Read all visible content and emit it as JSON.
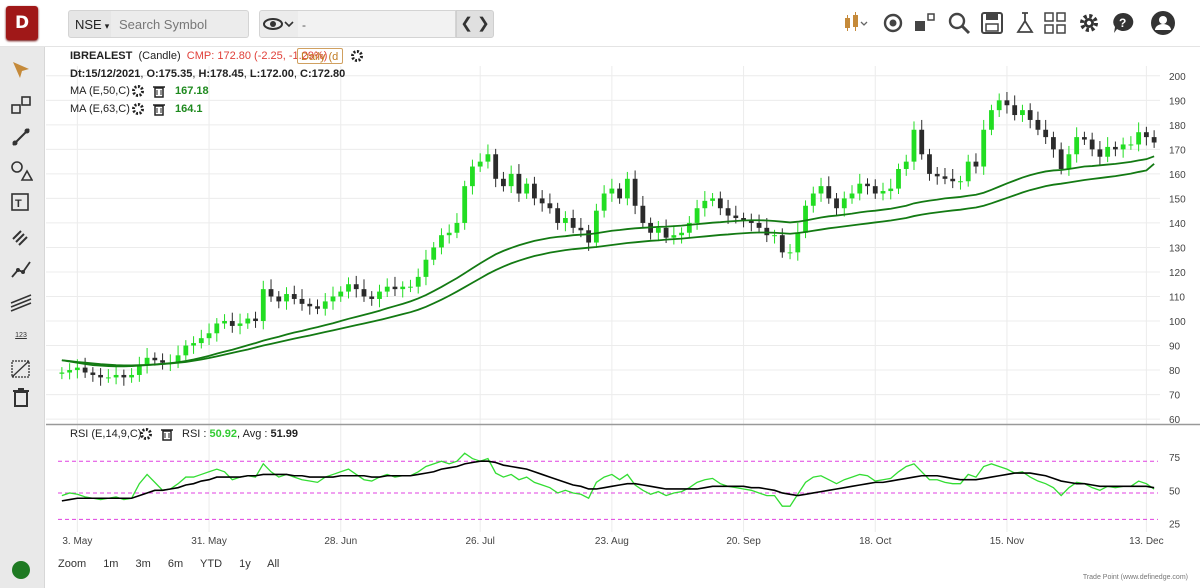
{
  "app": {
    "logo": "D",
    "footer": "Trade Point (www.definedge.com)"
  },
  "toolbar": {
    "exchange": "NSE",
    "search_placeholder": "Search Symbol",
    "nav_value": "-"
  },
  "toolbar_icons": [
    "candlestick-type-icon",
    "snapshot-icon",
    "layout-icon",
    "scanner-icon",
    "save-icon",
    "lab-icon",
    "grid-icon",
    "settings-icon",
    "help-icon",
    "user-icon"
  ],
  "sidebar_icons": [
    "cursor-icon",
    "rectangle-icon",
    "trendline-icon",
    "shapes-icon",
    "text-tool-icon",
    "fib-icon",
    "path-icon",
    "channel-icon",
    "number-icon",
    "measure-icon",
    "delete-icon"
  ],
  "sidebar": {
    "number_label": "123"
  },
  "legend": {
    "symbol": "IBREALEST",
    "chart_type": "(Candle)",
    "cmp": "CMP: 172.80 (-2.25, -1.29%)",
    "timeframe": "Daily (d",
    "ohlc_date": "Dt:15/12/2021",
    "open": "O:175.35",
    "high": "H:178.45",
    "low": "L:172.00",
    "close": "C:172.80",
    "ma1_label": "MA (E,50,C)",
    "ma1_value": "167.18",
    "ma2_label": "MA (E,63,C)",
    "ma2_value": "164.1",
    "rsi_label": "RSI (E,14,9,C)",
    "rsi_text": "RSI :",
    "rsi_value": "50.92",
    "avg_text": "Avg :",
    "avg_value": "51.99"
  },
  "zoom": {
    "label": "Zoom",
    "options": [
      "1m",
      "3m",
      "6m",
      "YTD",
      "1y",
      "All"
    ]
  },
  "colors": {
    "up": "#22dd22",
    "down": "#2b2b2b",
    "ma": "#137a13",
    "rsi": "#33dd33",
    "rsi_avg": "#000000",
    "rsi_band": "#e040e0"
  },
  "chart_data": {
    "type": "candlestick",
    "symbol": "IBREALEST",
    "price_axis": {
      "ticks": [
        60,
        70,
        80,
        90,
        100,
        110,
        120,
        130,
        140,
        150,
        160,
        170,
        180,
        190,
        200
      ],
      "range": [
        58,
        204
      ]
    },
    "rsi_axis": {
      "ticks": [
        25,
        50,
        75
      ],
      "range": [
        20,
        85
      ],
      "bands": [
        28,
        48,
        72
      ]
    },
    "x_ticks": [
      "3. May",
      "31. May",
      "28. Jun",
      "26. Jul",
      "23. Aug",
      "20. Sep",
      "18. Oct",
      "15. Nov",
      "13. Dec"
    ],
    "close": [
      79,
      80,
      81,
      79,
      78,
      77,
      77,
      78,
      77,
      78,
      82,
      85,
      84,
      83,
      83,
      86,
      90,
      91,
      93,
      95,
      99,
      100,
      98,
      99,
      101,
      100,
      113,
      110,
      108,
      111,
      109,
      107,
      106,
      105,
      108,
      110,
      112,
      115,
      113,
      110,
      109,
      112,
      114,
      113,
      114,
      114,
      118,
      125,
      130,
      135,
      136,
      140,
      155,
      163,
      165,
      168,
      158,
      155,
      160,
      152,
      156,
      150,
      148,
      146,
      140,
      142,
      138,
      137,
      132,
      145,
      152,
      154,
      150,
      158,
      147,
      140,
      136,
      138,
      134,
      135,
      136,
      140,
      146,
      149,
      150,
      146,
      143,
      142,
      141,
      140,
      138,
      135,
      135,
      128,
      128,
      136,
      147,
      152,
      155,
      150,
      146,
      150,
      152,
      156,
      155,
      152,
      153,
      154,
      162,
      165,
      178,
      168,
      160,
      159,
      158,
      157,
      157,
      165,
      163,
      178,
      186,
      190,
      188,
      184,
      186,
      182,
      178,
      175,
      170,
      162,
      168,
      175,
      174,
      170,
      167,
      171,
      170,
      172,
      172,
      177,
      175,
      172.8
    ],
    "ma50": [
      84,
      83.5,
      83,
      82.5,
      82,
      81.8,
      81.6,
      81.5,
      81.5,
      81.6,
      81.8,
      82,
      82.2,
      82.5,
      82.8,
      83.2,
      83.7,
      84.3,
      85,
      85.8,
      86.7,
      87.5,
      88.3,
      89.2,
      90.1,
      91,
      92,
      92.8,
      93.6,
      94.5,
      95.3,
      96,
      96.8,
      97.5,
      98.3,
      99.1,
      100,
      100.9,
      101.7,
      102.5,
      103.3,
      104.2,
      105.2,
      106.1,
      107,
      108,
      109.2,
      110.6,
      112.2,
      113.9,
      115.7,
      117.5,
      119.5,
      121.5,
      123.5,
      125.4,
      127.2,
      128.6,
      129.8,
      130.9,
      131.8,
      132.7,
      133.3,
      133.9,
      134.3,
      134.6,
      135,
      135.2,
      135.4,
      135.8,
      136.3,
      136.8,
      137.1,
      137.5,
      137.8,
      138,
      138.2,
      138.4,
      138.5,
      138.7,
      138.9,
      139.2,
      139.5,
      139.8,
      140.1,
      140.3,
      140.6,
      140.8,
      141,
      141.1,
      141.1,
      141,
      140.8,
      140.5,
      140.2,
      140.5,
      141,
      141.6,
      142.2,
      142.7,
      143,
      143.4,
      143.8,
      144.3,
      144.7,
      145,
      145.4,
      145.8,
      146.4,
      147,
      148,
      148.6,
      149.1,
      149.5,
      150,
      150.3,
      150.6,
      151.1,
      151.5,
      152.3,
      153.5,
      154.8,
      156.1,
      157.3,
      158.5,
      159.5,
      160.3,
      161,
      161.4,
      161.6,
      162,
      162.5,
      163,
      163.2,
      163.5,
      163.8,
      164.1,
      164.5,
      164.9,
      165.5,
      166,
      167.18
    ],
    "ma63": [
      84,
      83.7,
      83.3,
      83,
      82.7,
      82.4,
      82.2,
      82,
      81.9,
      81.9,
      82,
      82.1,
      82.3,
      82.5,
      82.7,
      83,
      83.3,
      83.8,
      84.3,
      84.9,
      85.6,
      86.3,
      87,
      87.7,
      88.4,
      89.2,
      90,
      90.7,
      91.4,
      92.1,
      92.8,
      93.5,
      94.1,
      94.8,
      95.5,
      96.2,
      96.9,
      97.6,
      98.3,
      99,
      99.7,
      100.4,
      101.2,
      102,
      102.8,
      103.6,
      104.6,
      105.8,
      107.2,
      108.7,
      110.3,
      112,
      113.8,
      115.6,
      117.4,
      119.2,
      120.8,
      122.2,
      123.5,
      124.6,
      125.6,
      126.5,
      127.2,
      127.9,
      128.4,
      128.9,
      129.3,
      129.6,
      129.9,
      130.2,
      130.6,
      131,
      131.4,
      131.8,
      132.1,
      132.4,
      132.7,
      132.9,
      133.2,
      133.4,
      133.6,
      133.9,
      134.2,
      134.5,
      134.8,
      135.1,
      135.3,
      135.6,
      135.8,
      136,
      136.1,
      136.1,
      136,
      135.8,
      135.6,
      135.9,
      136.3,
      136.8,
      137.3,
      137.8,
      138.2,
      138.6,
      139,
      139.4,
      139.8,
      140.2,
      140.6,
      141,
      141.5,
      142,
      142.8,
      143.4,
      143.9,
      144.3,
      144.7,
      145.1,
      145.4,
      145.9,
      146.3,
      147,
      148,
      149.1,
      150.2,
      151.3,
      152.4,
      153.4,
      154.2,
      155,
      155.6,
      156,
      156.5,
      157,
      157.5,
      157.9,
      158.3,
      158.7,
      159.1,
      159.6,
      160.1,
      160.8,
      161.4,
      164.1
    ],
    "rsi": [
      46,
      48,
      47,
      45,
      44,
      43,
      44,
      45,
      43,
      44,
      55,
      62,
      56,
      50,
      51,
      55,
      60,
      60,
      62,
      64,
      66,
      64,
      58,
      60,
      61,
      60,
      70,
      64,
      60,
      62,
      60,
      58,
      57,
      56,
      60,
      62,
      64,
      66,
      62,
      58,
      57,
      60,
      62,
      60,
      61,
      61,
      64,
      68,
      70,
      72,
      70,
      72,
      78,
      74,
      72,
      74,
      63,
      60,
      62,
      58,
      60,
      56,
      54,
      52,
      48,
      50,
      48,
      47,
      44,
      56,
      60,
      62,
      58,
      62,
      54,
      50,
      47,
      49,
      46,
      48,
      49,
      52,
      56,
      58,
      59,
      55,
      53,
      52,
      51,
      50,
      48,
      46,
      46,
      38,
      38,
      47,
      56,
      60,
      61,
      58,
      55,
      58,
      60,
      62,
      61,
      57,
      58,
      59,
      64,
      68,
      70,
      64,
      58,
      58,
      56,
      55,
      55,
      62,
      60,
      68,
      70,
      68,
      66,
      63,
      64,
      60,
      57,
      55,
      52,
      46,
      52,
      56,
      55,
      52,
      50,
      53,
      52,
      53,
      53,
      57,
      55,
      50.92
    ],
    "rsi_avg": [
      42,
      43,
      44,
      44,
      44,
      44,
      44,
      44,
      44,
      44,
      46,
      48,
      50,
      50,
      51,
      52,
      54,
      55,
      57,
      58,
      60,
      60,
      60,
      60,
      61,
      61,
      62,
      62,
      62,
      62,
      61,
      61,
      60,
      60,
      60,
      60,
      61,
      61,
      61,
      61,
      60,
      60,
      61,
      61,
      61,
      61,
      62,
      63,
      64,
      66,
      67,
      68,
      70,
      71,
      72,
      72,
      71,
      69,
      68,
      67,
      66,
      64,
      62,
      60,
      58,
      56,
      54,
      53,
      51,
      51,
      52,
      53,
      54,
      55,
      55,
      54,
      53,
      52,
      51,
      51,
      51,
      51,
      51,
      52,
      53,
      53,
      53,
      53,
      53,
      52,
      52,
      51,
      50,
      48,
      47,
      46,
      47,
      48,
      49,
      50,
      51,
      52,
      53,
      54,
      55,
      56,
      56,
      57,
      58,
      59,
      60,
      61,
      61,
      61,
      60,
      59,
      58,
      58,
      58,
      59,
      60,
      61,
      62,
      63,
      63,
      63,
      62,
      61,
      59,
      57,
      56,
      55,
      55,
      54,
      53,
      53,
      53,
      53,
      53,
      53,
      53,
      51.99
    ]
  }
}
